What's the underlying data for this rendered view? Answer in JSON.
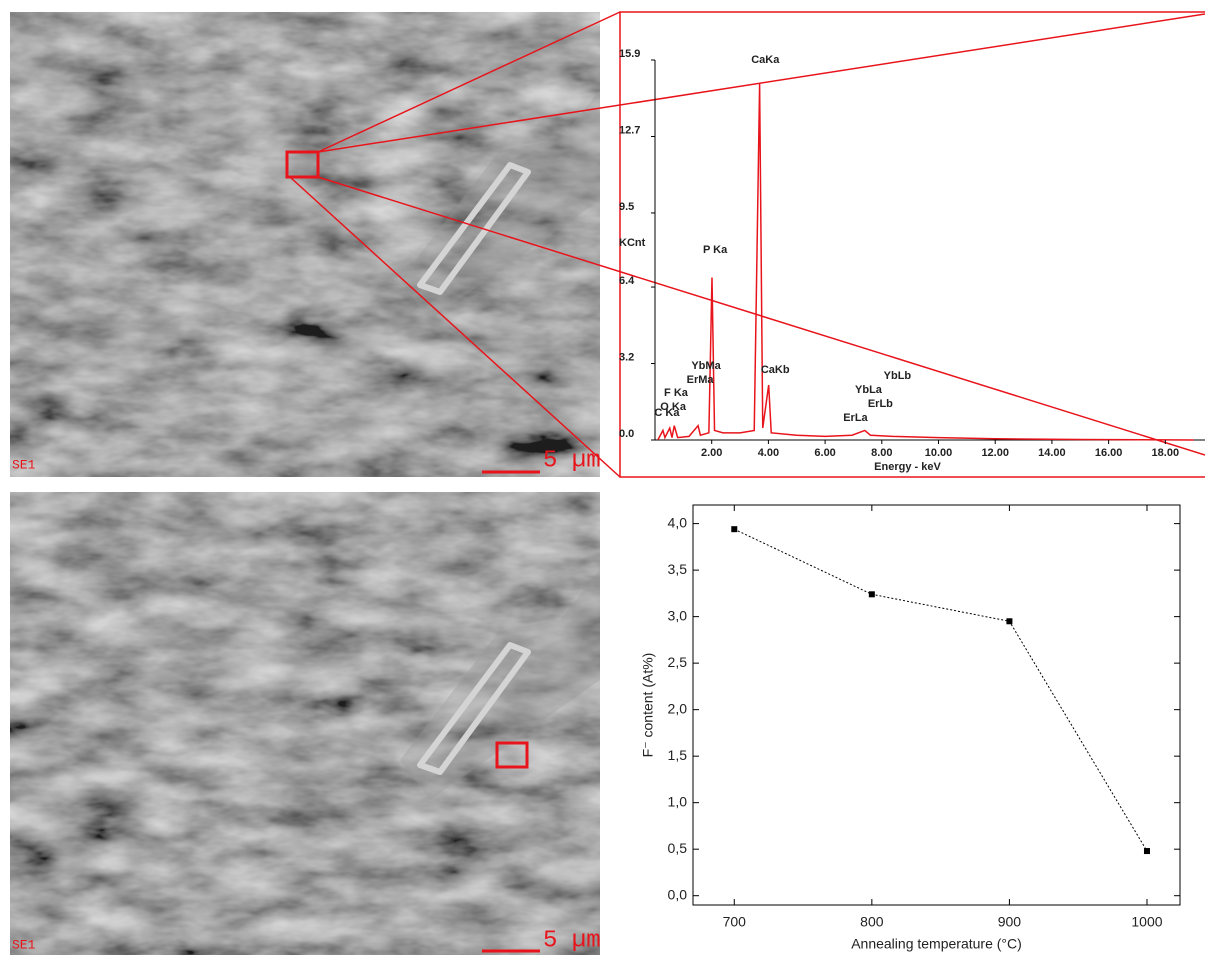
{
  "images": [
    {
      "label": "SE1",
      "scale": "5 µm"
    },
    {
      "label": "SE1",
      "scale": "5 µm"
    }
  ],
  "chart_data": [
    {
      "type": "area",
      "color": "#e8141b",
      "ylabel": "KCnt",
      "xlabel": "Energy - keV",
      "x": [
        0.1,
        0.28,
        0.35,
        0.52,
        0.6,
        0.68,
        0.8,
        1.2,
        1.52,
        1.6,
        1.9,
        2.01,
        2.1,
        2.4,
        3.0,
        3.5,
        3.69,
        3.8,
        4.01,
        4.1,
        5.0,
        6.0,
        6.95,
        7.4,
        7.6,
        8.4,
        10.0,
        12.0,
        15.0,
        19.0
      ],
      "values": [
        0,
        0.4,
        0.1,
        0.5,
        0.1,
        0.6,
        0.1,
        0.15,
        0.6,
        0.2,
        0.3,
        6.8,
        0.4,
        0.3,
        0.3,
        0.4,
        14.9,
        0.5,
        2.3,
        0.3,
        0.2,
        0.15,
        0.2,
        0.4,
        0.2,
        0.15,
        0.1,
        0.05,
        0.02,
        0
      ],
      "xlim": [
        0,
        19.4
      ],
      "ylim": [
        0,
        15.9
      ],
      "yticks": [
        {
          "value": 0,
          "label": "0.0"
        },
        3.2,
        6.4,
        9.5,
        12.7,
        15.9
      ],
      "xticks": [
        {
          "value": 2,
          "label": "2.00"
        },
        {
          "value": 4,
          "label": "4.00"
        },
        {
          "value": 6,
          "label": "6.00"
        },
        {
          "value": 8,
          "label": "8.00"
        },
        {
          "value": 10,
          "label": "10.00"
        },
        {
          "value": 12,
          "label": "12.00"
        },
        {
          "value": 14,
          "label": "14.00"
        },
        {
          "value": 16,
          "label": "16.00"
        },
        {
          "value": 18,
          "label": "18.00"
        }
      ],
      "annotations": [
        {
          "text": "CaKa",
          "x": 3.89,
          "y": 15.9
        },
        {
          "text": "P Ka",
          "x": 2.12,
          "y": 7.95
        },
        {
          "text": "YbMa",
          "x": 1.8,
          "y": 3.1
        },
        {
          "text": "ErMa",
          "x": 1.59,
          "y": 2.5
        },
        {
          "text": "F Ka",
          "x": 0.74,
          "y": 1.97
        },
        {
          "text": "O Ka",
          "x": 0.64,
          "y": 1.38
        },
        {
          "text": "C Ka",
          "x": 0.42,
          "y": 1.13
        },
        {
          "text": "CaKb",
          "x": 4.24,
          "y": 2.93
        },
        {
          "text": "YbLb",
          "x": 8.55,
          "y": 2.68
        },
        {
          "text": "YbLa",
          "x": 7.53,
          "y": 2.09
        },
        {
          "text": "ErLb",
          "x": 7.95,
          "y": 1.51
        },
        {
          "text": "ErLa",
          "x": 7.07,
          "y": 0.92
        }
      ]
    },
    {
      "type": "line",
      "color": "#000000",
      "ylabel": "F⁻ content (At%)",
      "xlabel": "Annealing temperature (°C)",
      "x": [
        700,
        800,
        900,
        1000
      ],
      "values": [
        3.94,
        3.24,
        2.95,
        0.48
      ],
      "xlim": [
        670,
        1024
      ],
      "ylim": [
        -0.1,
        4.2
      ],
      "xticks": [
        700,
        800,
        900,
        1000
      ],
      "yticks": [
        {
          "value": 0,
          "label": "0,0"
        },
        {
          "value": 0.5,
          "label": "0,5"
        },
        {
          "value": 1,
          "label": "1,0"
        },
        {
          "value": 1.5,
          "label": "1,5"
        },
        {
          "value": 2,
          "label": "2,0"
        },
        {
          "value": 2.5,
          "label": "2,5"
        },
        {
          "value": 3,
          "label": "3,0"
        },
        {
          "value": 3.5,
          "label": "3,5"
        },
        {
          "value": 4,
          "label": "4,0"
        }
      ]
    }
  ]
}
